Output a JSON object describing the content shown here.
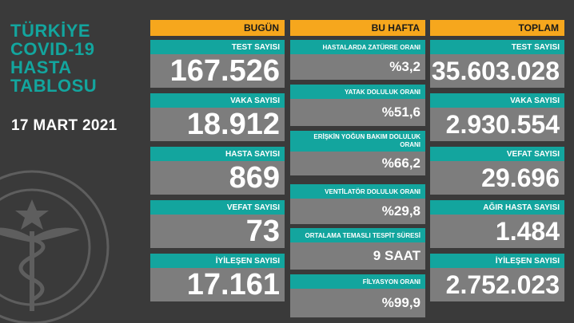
{
  "title_lines": [
    "TÜRKİYE",
    "COVID-19",
    "HASTA",
    "TABLOSU"
  ],
  "date": "17 MART 2021",
  "columns": {
    "today": {
      "header": "BUGÜN",
      "cards": [
        {
          "label": "TEST SAYISI",
          "value": "167.526"
        },
        {
          "label": "VAKA SAYISI",
          "value": "18.912"
        },
        {
          "label": "HASTA SAYISI",
          "value": "869"
        },
        {
          "label": "VEFAT SAYISI",
          "value": "73"
        },
        {
          "label": "İYİLEŞEN SAYISI",
          "value": "17.161"
        }
      ]
    },
    "week": {
      "header": "BU HAFTA",
      "cards": [
        {
          "label": "HASTALARDA ZATÜRRE ORANI",
          "value": "%3,2"
        },
        {
          "label": "YATAK DOLULUK ORANI",
          "value": "%51,6"
        },
        {
          "label": "ERİŞKİN YOĞUN BAKIM DOLULUK ORANI",
          "value": "%66,2"
        },
        {
          "label": "VENTİLATÖR DOLULUK ORANI",
          "value": "%29,8"
        },
        {
          "label": "ORTALAMA TEMASLI TESPİT SÜRESİ",
          "value": "9 SAAT"
        },
        {
          "label": "FİLYASYON ORANI",
          "value": "%99,9"
        }
      ]
    },
    "total": {
      "header": "TOPLAM",
      "cards": [
        {
          "label": "TEST SAYISI",
          "value": "35.603.028"
        },
        {
          "label": "VAKA SAYISI",
          "value": "2.930.554"
        },
        {
          "label": "VEFAT SAYISI",
          "value": "29.696"
        },
        {
          "label": "AĞIR HASTA SAYISI",
          "value": "1.484"
        },
        {
          "label": "İYİLEŞEN SAYISI",
          "value": "2.752.023"
        }
      ]
    }
  },
  "colors": {
    "background": "#3a3a3a",
    "accent_teal": "#13a59e",
    "header_orange": "#f6a71d",
    "value_gray": "#7d7d7d"
  },
  "icons": {
    "emblem": "ministry-of-health-emblem-icon"
  }
}
